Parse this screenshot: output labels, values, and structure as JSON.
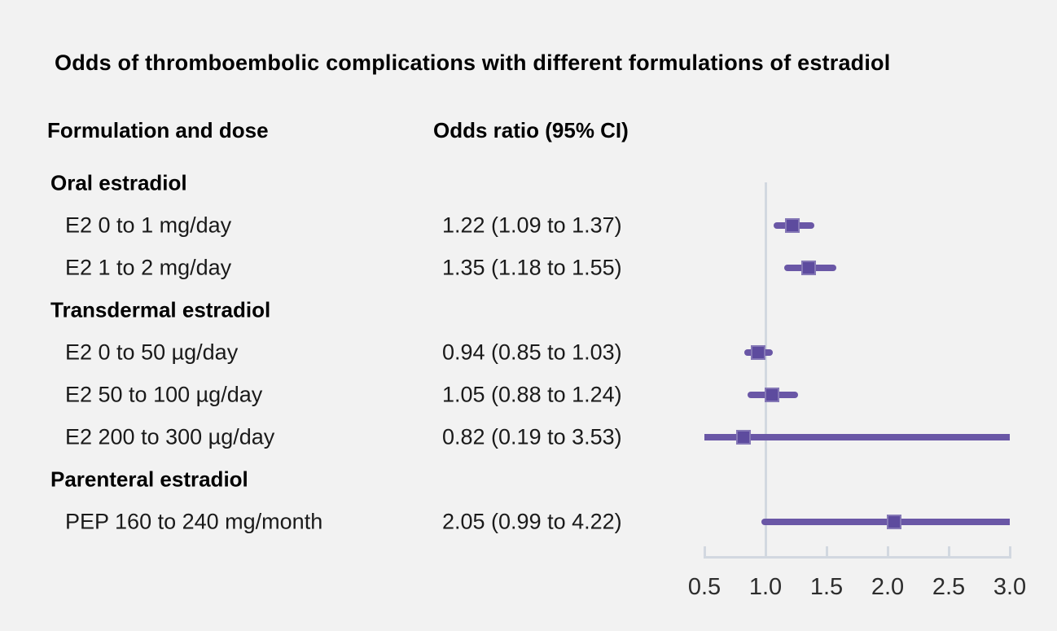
{
  "figure": {
    "title": "Odds of thromboembolic complications with different formulations of estradiol",
    "column_headers": {
      "formulation": "Formulation and dose",
      "odds_ratio": "Odds ratio (95% CI)"
    }
  },
  "chart_data": {
    "type": "forest",
    "title": "Odds of thromboembolic complications with different formulations of estradiol",
    "xlabel": "",
    "ylabel": "",
    "legend": "none",
    "grid": false,
    "axis": {
      "min": 0.5,
      "max": 3.0,
      "reference": 1.0,
      "ticks": [
        {
          "value": 0.5,
          "label": "0.5"
        },
        {
          "value": 1.0,
          "label": "1.0"
        },
        {
          "value": 1.5,
          "label": "1.5"
        },
        {
          "value": 2.0,
          "label": "2.0"
        },
        {
          "value": 2.5,
          "label": "2.5"
        },
        {
          "value": 3.0,
          "label": "3.0"
        }
      ]
    },
    "rows": [
      {
        "type": "group",
        "label": "Oral estradiol"
      },
      {
        "type": "item",
        "label": "E2 0 to 1 mg/day",
        "display": "1.22 (1.09 to 1.37)",
        "or": 1.22,
        "low": 1.09,
        "high": 1.37
      },
      {
        "type": "item",
        "label": "E2 1 to 2 mg/day",
        "display": "1.35 (1.18 to 1.55)",
        "or": 1.35,
        "low": 1.18,
        "high": 1.55
      },
      {
        "type": "group",
        "label": "Transdermal estradiol"
      },
      {
        "type": "item",
        "label": "E2 0 to 50 µg/day",
        "display": "0.94 (0.85 to 1.03)",
        "or": 0.94,
        "low": 0.85,
        "high": 1.03
      },
      {
        "type": "item",
        "label": "E2 50 to 100 µg/day",
        "display": "1.05 (0.88 to 1.24)",
        "or": 1.05,
        "low": 0.88,
        "high": 1.24
      },
      {
        "type": "item",
        "label": "E2 200 to 300 µg/day",
        "display": "0.82 (0.19 to 3.53)",
        "or": 0.82,
        "low": 0.19,
        "high": 3.53
      },
      {
        "type": "group",
        "label": "Parenteral estradiol"
      },
      {
        "type": "item",
        "label": "PEP 160 to 240 mg/month",
        "display": "2.05 (0.99 to 4.22)",
        "or": 2.05,
        "low": 0.99,
        "high": 4.22
      }
    ],
    "colors": {
      "marker": "#5d4b9e",
      "ci_line": "#6a57a6",
      "axis": "#d2d8e0",
      "background": "#f2f2f2"
    }
  }
}
